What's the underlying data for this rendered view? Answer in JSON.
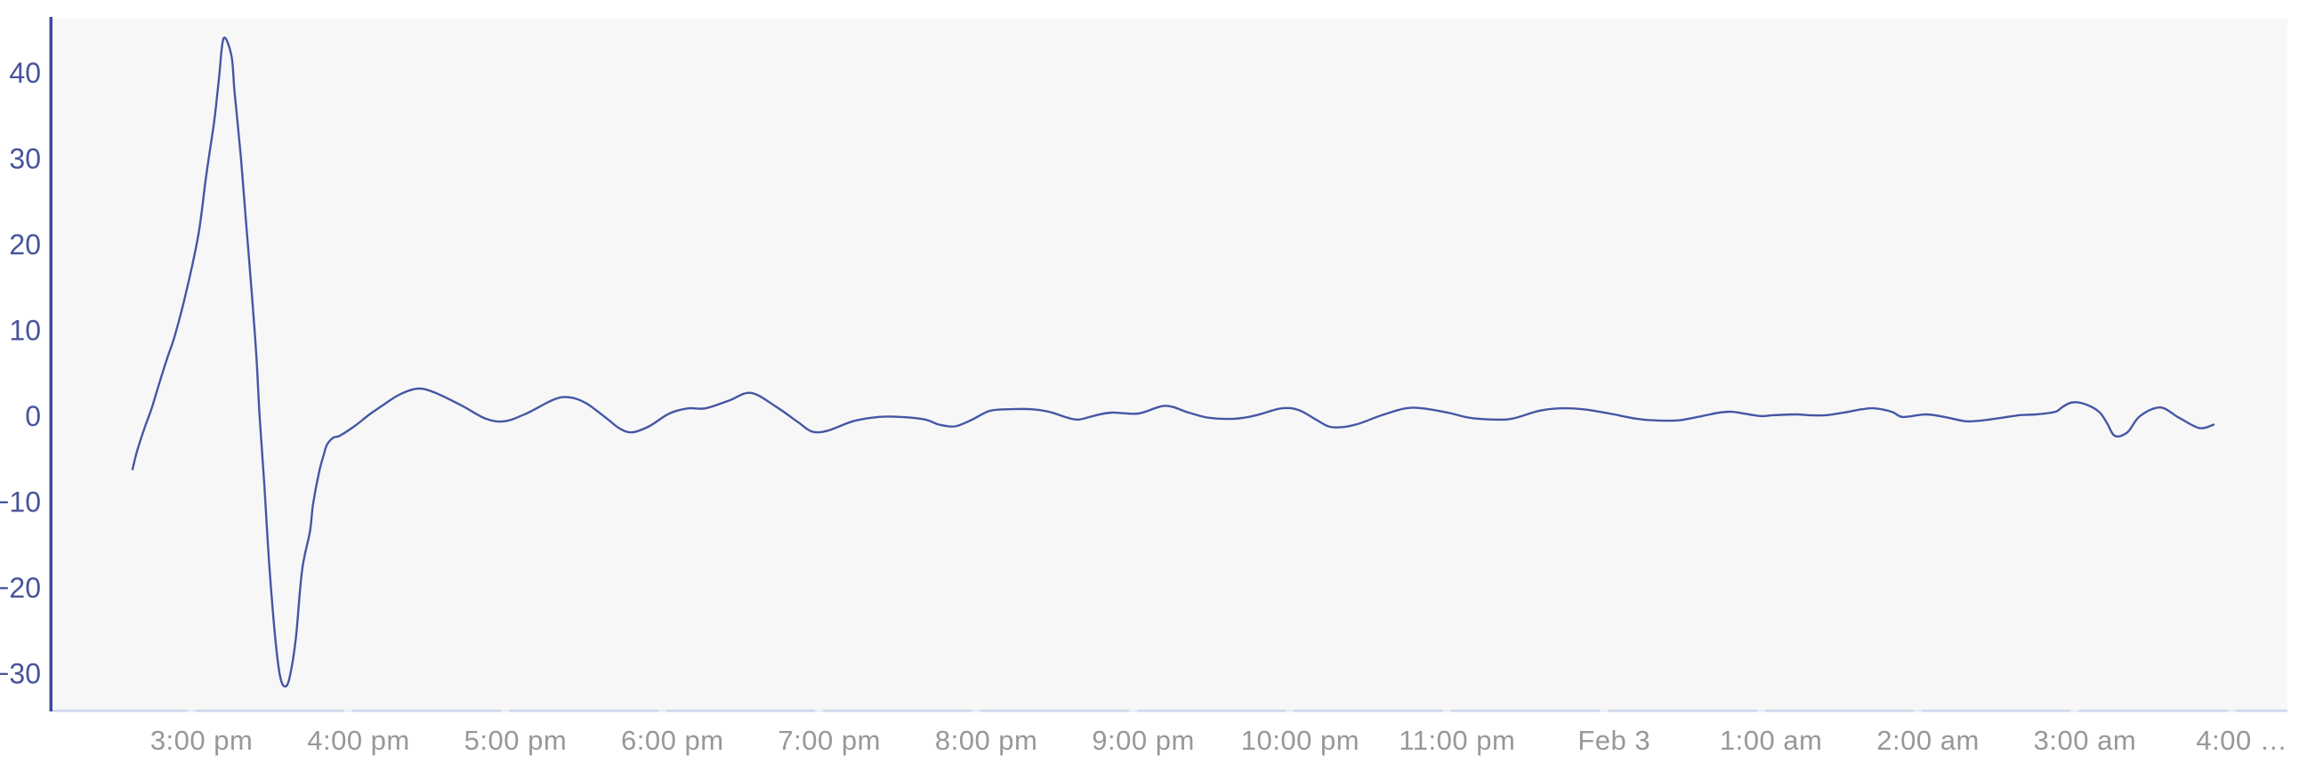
{
  "chart_data": {
    "type": "line",
    "title": "",
    "x_unit": "hours relative to 3:00 pm (Feb 2 → Feb 3)",
    "xlim": [
      -0.95,
      13.29
    ],
    "ylim": [
      -34.2,
      46.3
    ],
    "grid": false,
    "legend": false,
    "x_axis": {
      "ticks": [
        {
          "t": 0,
          "label": "3:00 pm"
        },
        {
          "t": 1,
          "label": "4:00 pm"
        },
        {
          "t": 2,
          "label": "5:00 pm"
        },
        {
          "t": 3,
          "label": "6:00 pm"
        },
        {
          "t": 4,
          "label": "7:00 pm"
        },
        {
          "t": 5,
          "label": "8:00 pm"
        },
        {
          "t": 6,
          "label": "9:00 pm"
        },
        {
          "t": 7,
          "label": "10:00 pm"
        },
        {
          "t": 8,
          "label": "11:00 pm"
        },
        {
          "t": 9,
          "label": "Feb 3"
        },
        {
          "t": 10,
          "label": "1:00 am"
        },
        {
          "t": 11,
          "label": "2:00 am"
        },
        {
          "t": 12,
          "label": "3:00 am"
        },
        {
          "t": 13,
          "label": "4:00 …"
        }
      ]
    },
    "y_axis": {
      "ticks": [
        {
          "v": 40,
          "label": "40"
        },
        {
          "v": 30,
          "label": "30"
        },
        {
          "v": 20,
          "label": "20"
        },
        {
          "v": 10,
          "label": "10"
        },
        {
          "v": 0,
          "label": "0"
        },
        {
          "v": -10,
          "label": "−10"
        },
        {
          "v": -20,
          "label": "−20"
        },
        {
          "v": -30,
          "label": "−30"
        }
      ]
    },
    "colors": {
      "line": "#4656a4",
      "y_axis_line": "#3e4ba1",
      "y_label": "#47549b",
      "x_axis_line": "#cfd5ec",
      "x_axis_tick": "#eaedf7",
      "x_label": "#97979c",
      "plot_bg": "#f7f7f8",
      "page_bg": "#ffffff"
    },
    "series": [
      {
        "name": "series-1",
        "color": "#4656a4",
        "points": [
          [
            -0.44,
            -6.2
          ],
          [
            -0.41,
            -4.0
          ],
          [
            -0.36,
            -1.2
          ],
          [
            -0.32,
            0.8
          ],
          [
            -0.28,
            3.2
          ],
          [
            -0.22,
            6.7
          ],
          [
            -0.17,
            9.4
          ],
          [
            -0.1,
            14.3
          ],
          [
            -0.02,
            21.2
          ],
          [
            0.03,
            28.1
          ],
          [
            0.08,
            34.3
          ],
          [
            0.11,
            39.2
          ],
          [
            0.14,
            44.0
          ],
          [
            0.19,
            42.0
          ],
          [
            0.21,
            37.8
          ],
          [
            0.25,
            30.2
          ],
          [
            0.28,
            23.3
          ],
          [
            0.32,
            14.3
          ],
          [
            0.35,
            6.7
          ],
          [
            0.37,
            -0.2
          ],
          [
            0.4,
            -8.0
          ],
          [
            0.43,
            -17.0
          ],
          [
            0.47,
            -26.0
          ],
          [
            0.5,
            -30.3
          ],
          [
            0.53,
            -31.5
          ],
          [
            0.56,
            -30.5
          ],
          [
            0.6,
            -26.0
          ],
          [
            0.64,
            -18.0
          ],
          [
            0.69,
            -13.5
          ],
          [
            0.71,
            -10.3
          ],
          [
            0.75,
            -6.4
          ],
          [
            0.78,
            -4.4
          ],
          [
            0.8,
            -3.3
          ],
          [
            0.84,
            -2.5
          ],
          [
            0.88,
            -2.3
          ],
          [
            0.98,
            -1.1
          ],
          [
            1.07,
            0.2
          ],
          [
            1.15,
            1.2
          ],
          [
            1.26,
            2.5
          ],
          [
            1.38,
            3.2
          ],
          [
            1.49,
            2.7
          ],
          [
            1.66,
            1.2
          ],
          [
            1.81,
            -0.3
          ],
          [
            1.93,
            -0.6
          ],
          [
            2.07,
            0.3
          ],
          [
            2.24,
            1.9
          ],
          [
            2.34,
            2.2
          ],
          [
            2.45,
            1.5
          ],
          [
            2.59,
            -0.4
          ],
          [
            2.66,
            -1.4
          ],
          [
            2.74,
            -1.9
          ],
          [
            2.85,
            -1.2
          ],
          [
            2.98,
            0.3
          ],
          [
            3.1,
            0.9
          ],
          [
            3.21,
            0.9
          ],
          [
            3.36,
            1.8
          ],
          [
            3.5,
            2.7
          ],
          [
            3.66,
            1.1
          ],
          [
            3.8,
            -0.7
          ],
          [
            3.89,
            -1.8
          ],
          [
            3.99,
            -1.7
          ],
          [
            4.15,
            -0.6
          ],
          [
            4.31,
            -0.1
          ],
          [
            4.46,
            -0.1
          ],
          [
            4.61,
            -0.4
          ],
          [
            4.7,
            -1.0
          ],
          [
            4.8,
            -1.2
          ],
          [
            4.91,
            -0.4
          ],
          [
            5.02,
            0.6
          ],
          [
            5.14,
            0.8
          ],
          [
            5.29,
            0.8
          ],
          [
            5.4,
            0.5
          ],
          [
            5.52,
            -0.2
          ],
          [
            5.59,
            -0.4
          ],
          [
            5.7,
            0.1
          ],
          [
            5.8,
            0.4
          ],
          [
            5.97,
            0.3
          ],
          [
            6.14,
            1.2
          ],
          [
            6.29,
            0.4
          ],
          [
            6.42,
            -0.2
          ],
          [
            6.59,
            -0.3
          ],
          [
            6.72,
            0.1
          ],
          [
            6.88,
            0.9
          ],
          [
            6.99,
            0.7
          ],
          [
            7.1,
            -0.4
          ],
          [
            7.18,
            -1.2
          ],
          [
            7.26,
            -1.3
          ],
          [
            7.37,
            -0.9
          ],
          [
            7.52,
            0.1
          ],
          [
            7.67,
            0.9
          ],
          [
            7.78,
            0.9
          ],
          [
            7.94,
            0.4
          ],
          [
            8.08,
            -0.2
          ],
          [
            8.24,
            -0.4
          ],
          [
            8.35,
            -0.3
          ],
          [
            8.52,
            0.6
          ],
          [
            8.65,
            0.9
          ],
          [
            8.8,
            0.8
          ],
          [
            8.97,
            0.3
          ],
          [
            9.14,
            -0.3
          ],
          [
            9.26,
            -0.5
          ],
          [
            9.41,
            -0.5
          ],
          [
            9.56,
            0.0
          ],
          [
            9.67,
            0.4
          ],
          [
            9.75,
            0.5
          ],
          [
            9.86,
            0.2
          ],
          [
            9.94,
            0.0
          ],
          [
            10.01,
            0.1
          ],
          [
            10.16,
            0.2
          ],
          [
            10.24,
            0.1
          ],
          [
            10.35,
            0.1
          ],
          [
            10.46,
            0.4
          ],
          [
            10.58,
            0.8
          ],
          [
            10.66,
            0.9
          ],
          [
            10.77,
            0.5
          ],
          [
            10.84,
            -0.1
          ],
          [
            10.99,
            0.2
          ],
          [
            11.13,
            -0.2
          ],
          [
            11.24,
            -0.6
          ],
          [
            11.35,
            -0.5
          ],
          [
            11.47,
            -0.2
          ],
          [
            11.58,
            0.1
          ],
          [
            11.69,
            0.2
          ],
          [
            11.81,
            0.5
          ],
          [
            11.86,
            1.1
          ],
          [
            11.92,
            1.6
          ],
          [
            12.0,
            1.4
          ],
          [
            12.09,
            0.5
          ],
          [
            12.14,
            -0.8
          ],
          [
            12.19,
            -2.3
          ],
          [
            12.27,
            -1.9
          ],
          [
            12.35,
            0.0
          ],
          [
            12.48,
            1.0
          ],
          [
            12.6,
            -0.2
          ],
          [
            12.73,
            -1.4
          ],
          [
            12.82,
            -1.0
          ]
        ]
      }
    ]
  }
}
